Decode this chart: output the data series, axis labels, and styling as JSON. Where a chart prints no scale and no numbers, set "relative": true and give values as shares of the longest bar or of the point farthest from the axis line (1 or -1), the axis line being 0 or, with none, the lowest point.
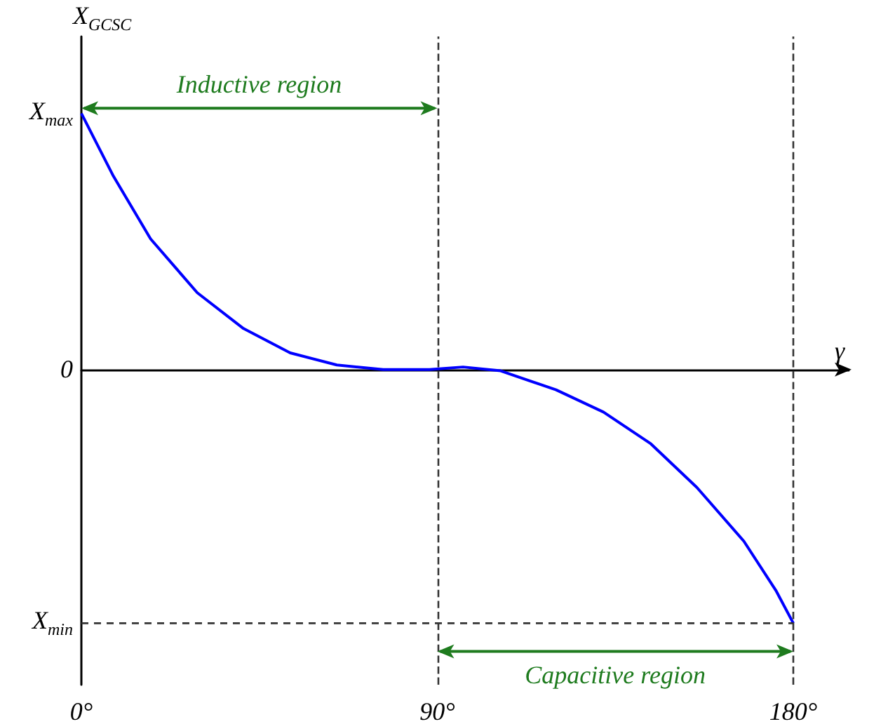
{
  "chart_data": {
    "type": "line",
    "relative": true,
    "ylabel": "X$_{GCSC}$",
    "xlabel": "γ",
    "x": [
      0,
      8.1,
      17.5,
      29.3,
      41,
      52.8,
      64.6,
      76.3,
      88,
      96.5,
      106,
      120,
      132,
      144,
      155.6,
      167.5,
      175.7,
      180
    ],
    "series": [
      {
        "color": "#0000ff",
        "values": [
          1,
          0.755,
          0.51,
          0.3,
          0.16,
          0.065,
          0.018,
          0,
          0,
          0.01,
          -0.005,
          -0.079,
          -0.166,
          -0.29,
          -0.46,
          -0.67,
          -0.865,
          -0.99
        ]
      }
    ],
    "xlim": [
      0,
      194
    ],
    "xticks": [
      {
        "value": 0,
        "label": "0°"
      },
      {
        "value": 90,
        "label": "90°"
      },
      {
        "value": 180,
        "label": "180°"
      }
    ],
    "ref_lines": [
      {
        "axis": "x",
        "value": 90,
        "line_style": "dashed",
        "color": "#333333"
      },
      {
        "axis": "x",
        "value": 180,
        "line_style": "dashed",
        "color": "#333333"
      }
    ],
    "annotations": [
      "Inductive region",
      "Capacitive region",
      {
        "text": "X$_{max}$",
        "x": 0,
        "y": 1
      },
      "X$_{min}$",
      "0"
    ],
    "grid": false,
    "marker": "none",
    "line_style": "solid"
  }
}
